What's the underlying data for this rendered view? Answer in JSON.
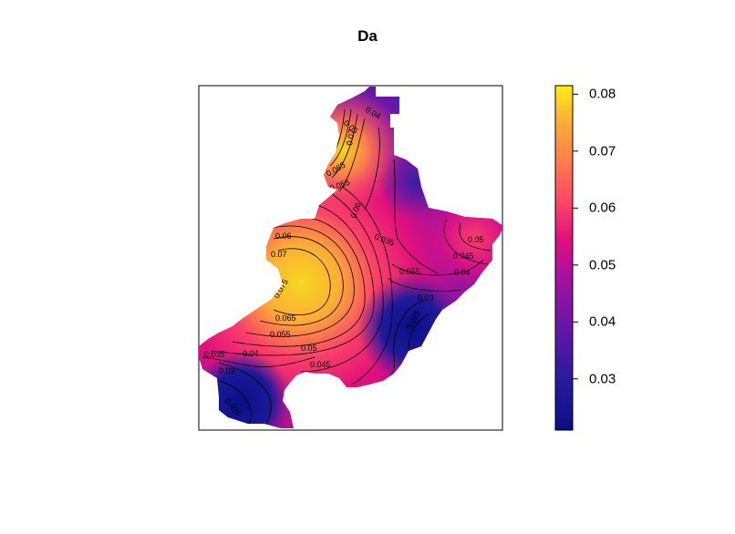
{
  "title": "Da",
  "colorbar": {
    "min": 0.021,
    "max": 0.0815,
    "ticks": [
      "0.03",
      "0.04",
      "0.05",
      "0.06",
      "0.07",
      "0.08"
    ],
    "colors": [
      "#0a0f85",
      "#3a1ea6",
      "#7d14a6",
      "#b0129a",
      "#e0107c",
      "#fb3f69",
      "#fd7c4d",
      "#fcae36",
      "#f7d81f",
      "#ffee10"
    ]
  },
  "contour_labels": [
    "0.04",
    "0.05",
    "0.07",
    "0.065",
    "0.055",
    "0.06",
    "0.06",
    "0.07",
    "0.075",
    "0.065",
    "0.055",
    "0.05",
    "0.045",
    "0.035",
    "0.04",
    "0.03",
    "0.025",
    "0.035",
    "0.045",
    "0.05",
    "0.04",
    "0.055",
    "0.03",
    "0.025"
  ]
}
